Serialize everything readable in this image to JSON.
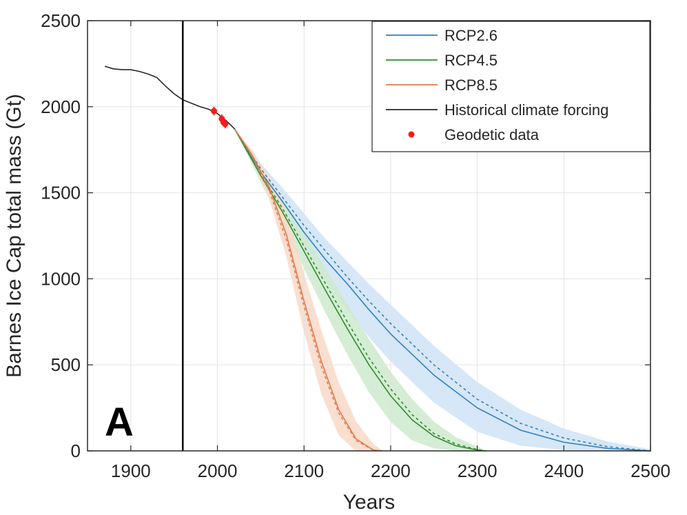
{
  "chart_data": {
    "type": "line",
    "title": "",
    "panel_label": "A",
    "xlabel": "Years",
    "ylabel": "Barnes Ice Cap total mass (Gt)",
    "xlim": [
      1850,
      2500
    ],
    "ylim": [
      0,
      2500
    ],
    "xticks": [
      1900,
      2000,
      2100,
      2200,
      2300,
      2400,
      2500
    ],
    "yticks": [
      0,
      500,
      1000,
      1500,
      2000,
      2500
    ],
    "grid": true,
    "vertical_line_x": 1960,
    "legend_position": "top-right",
    "historical": {
      "name": "Historical climate forcing",
      "color": "#262626",
      "x": [
        1870,
        1880,
        1890,
        1900,
        1910,
        1920,
        1930,
        1940,
        1950,
        1960,
        1970,
        1980,
        1990,
        2000,
        2010,
        2020
      ],
      "y": [
        2235,
        2220,
        2215,
        2215,
        2205,
        2190,
        2170,
        2120,
        2075,
        2040,
        2020,
        2000,
        1985,
        1960,
        1920,
        1870
      ]
    },
    "geodetic": {
      "name": "Geodetic data",
      "color": "#ff1a1a",
      "x": [
        1996,
        2005,
        2007,
        2009
      ],
      "y": [
        1975,
        1930,
        1910,
        1900
      ]
    },
    "series": [
      {
        "name": "RCP2.6",
        "color": "#2f7fc2",
        "band_color": "#cfe3f6",
        "x": [
          2020,
          2050,
          2075,
          2100,
          2125,
          2150,
          2175,
          2200,
          2250,
          2300,
          2350,
          2400,
          2450,
          2500
        ],
        "mean": [
          1870,
          1620,
          1450,
          1270,
          1110,
          970,
          820,
          680,
          440,
          250,
          120,
          50,
          15,
          0
        ],
        "dashed": [
          1870,
          1640,
          1475,
          1310,
          1160,
          1010,
          870,
          740,
          500,
          300,
          160,
          75,
          25,
          0
        ],
        "lower": [
          1870,
          1580,
          1380,
          1170,
          980,
          820,
          660,
          520,
          280,
          110,
          30,
          5,
          0,
          0
        ],
        "upper": [
          1870,
          1670,
          1530,
          1380,
          1230,
          1100,
          970,
          850,
          610,
          400,
          240,
          130,
          55,
          10
        ]
      },
      {
        "name": "RCP4.5",
        "color": "#2e8b2e",
        "band_color": "#cdeacd",
        "x": [
          2020,
          2050,
          2075,
          2100,
          2125,
          2150,
          2175,
          2200,
          2225,
          2250,
          2275,
          2300,
          2310
        ],
        "mean": [
          1870,
          1600,
          1390,
          1160,
          930,
          710,
          500,
          320,
          180,
          85,
          30,
          5,
          0
        ],
        "dashed": [
          1870,
          1610,
          1410,
          1190,
          970,
          750,
          540,
          360,
          210,
          100,
          40,
          8,
          0
        ],
        "lower": [
          1870,
          1560,
          1310,
          1060,
          800,
          560,
          340,
          170,
          60,
          15,
          0,
          0,
          0
        ],
        "upper": [
          1870,
          1640,
          1460,
          1260,
          1060,
          850,
          650,
          460,
          300,
          170,
          80,
          25,
          5
        ]
      },
      {
        "name": "RCP8.5",
        "color": "#e07a4a",
        "band_color": "#f8d9c8",
        "x": [
          2020,
          2040,
          2060,
          2080,
          2100,
          2120,
          2140,
          2160,
          2180,
          2190
        ],
        "mean": [
          1870,
          1720,
          1530,
          1250,
          870,
          520,
          240,
          70,
          5,
          0
        ],
        "dashed": [
          1870,
          1710,
          1510,
          1220,
          840,
          490,
          220,
          60,
          5,
          0
        ],
        "lower": [
          1870,
          1690,
          1460,
          1120,
          690,
          330,
          90,
          0,
          0,
          0
        ],
        "upper": [
          1870,
          1750,
          1590,
          1370,
          1030,
          700,
          400,
          170,
          40,
          5
        ]
      }
    ]
  }
}
